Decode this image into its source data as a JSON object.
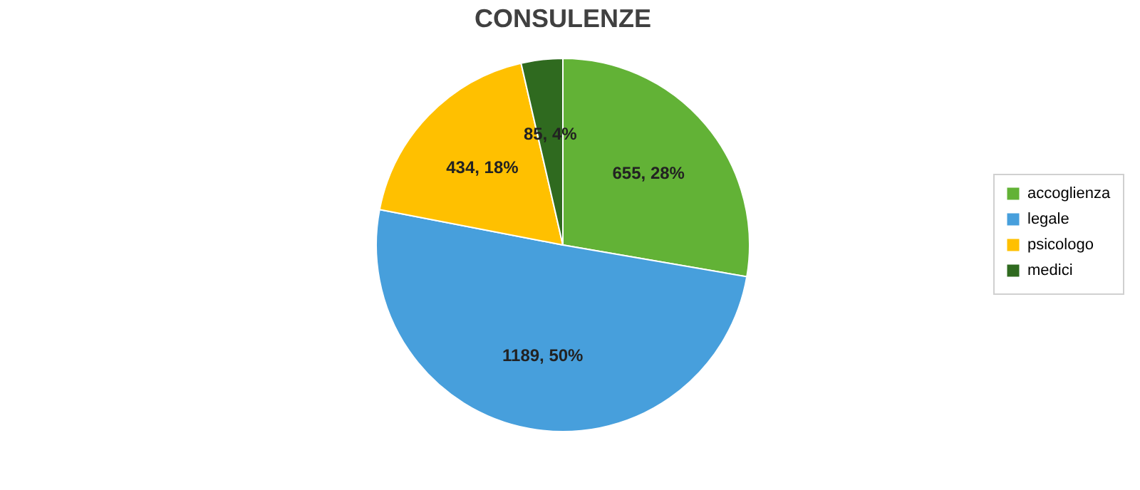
{
  "chart_data": {
    "type": "pie",
    "title": "CONSULENZE",
    "categories": [
      "accoglienza",
      "legale",
      "psicologo",
      "medici"
    ],
    "values": [
      655,
      1189,
      434,
      85
    ],
    "colors": [
      "#62b236",
      "#479fdc",
      "#ffc000",
      "#2f6a1f"
    ],
    "value_labels": [
      "655, 28%",
      "1189, 50%",
      "434, 18%",
      "85, 4%"
    ],
    "legend": "right"
  }
}
